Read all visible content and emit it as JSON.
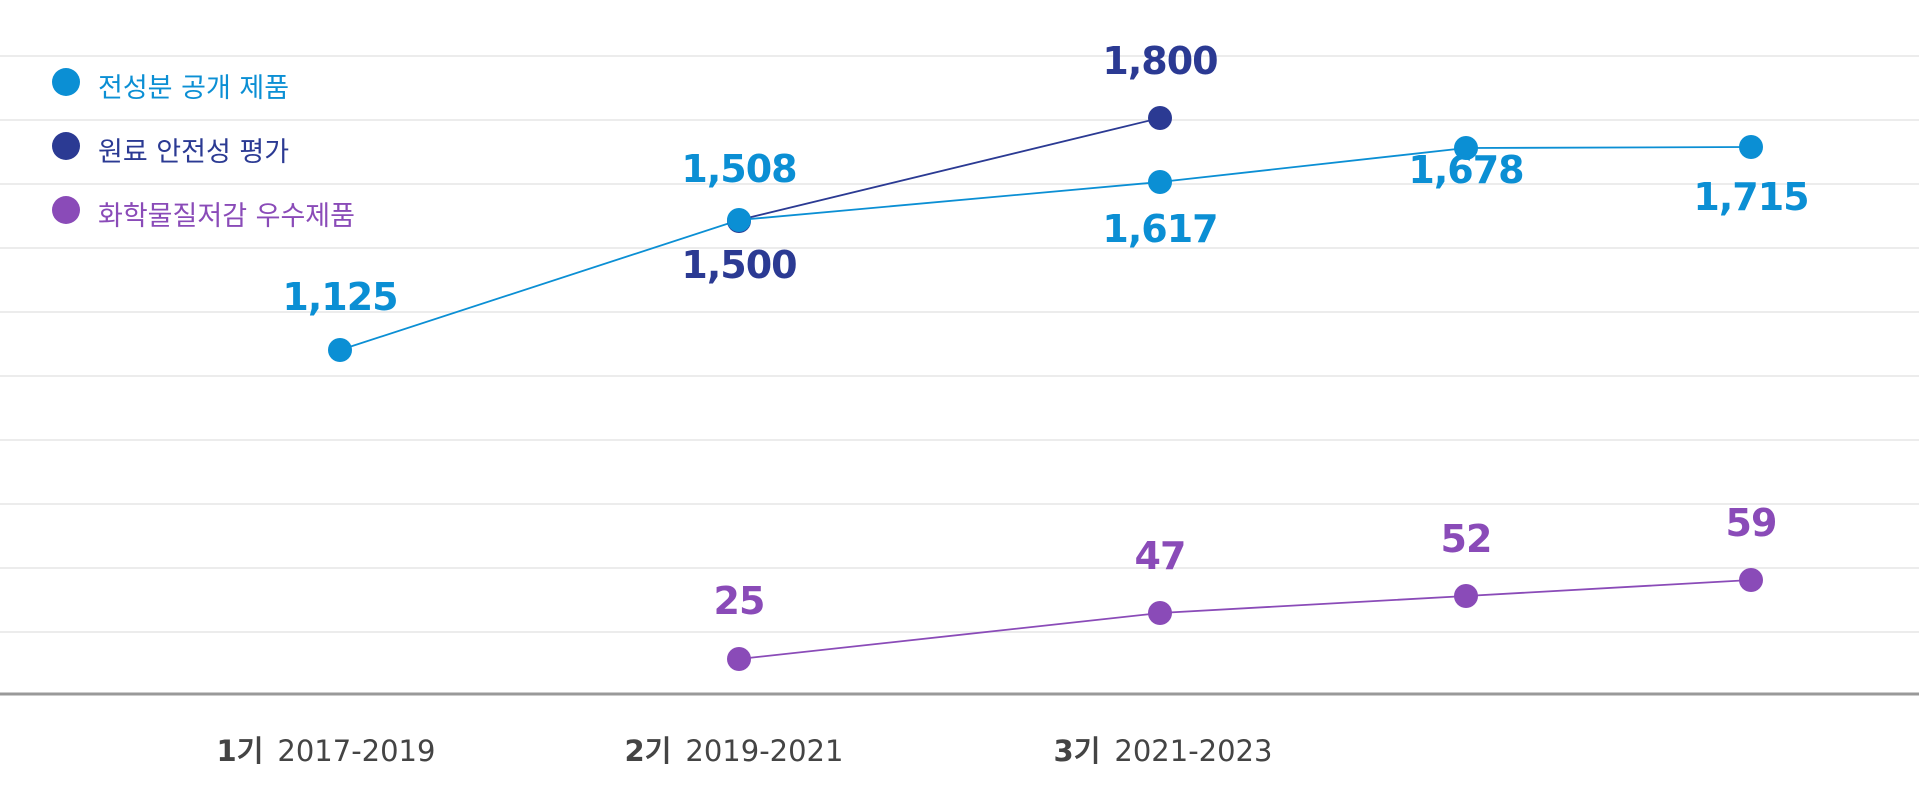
{
  "chart_data": {
    "type": "line",
    "title": "",
    "xlabel": "",
    "ylabel": "",
    "x_categories": [
      {
        "period": "1기",
        "years": "2017-2019"
      },
      {
        "period": "2기",
        "years": "2019-2021"
      },
      {
        "period": "3기",
        "years": "2021-2023"
      },
      {
        "period": "",
        "years": ""
      },
      {
        "period": "",
        "years": ""
      }
    ],
    "legend_position": "top-left",
    "grid": true,
    "series": [
      {
        "name": "전성분 공개 제품",
        "color": "#0b8fd4",
        "label_position": "above-below",
        "values": [
          1125,
          1508,
          1617,
          1678,
          1715
        ]
      },
      {
        "name": "원료 안전성 평가",
        "color": "#2b3a93",
        "label_position": "mixed",
        "values": [
          null,
          1500,
          1800,
          null,
          null
        ]
      },
      {
        "name": "화학물질저감 우수제품",
        "color": "#8a4bb8",
        "label_position": "above",
        "values": [
          null,
          25,
          47,
          52,
          59
        ]
      }
    ],
    "value_labels": [
      {
        "series": 0,
        "index": 0,
        "text": "1,125"
      },
      {
        "series": 0,
        "index": 1,
        "text": "1,508"
      },
      {
        "series": 0,
        "index": 2,
        "text": "1,617"
      },
      {
        "series": 0,
        "index": 3,
        "text": "1,678"
      },
      {
        "series": 0,
        "index": 4,
        "text": "1,715"
      },
      {
        "series": 1,
        "index": 1,
        "text": "1,500"
      },
      {
        "series": 1,
        "index": 2,
        "text": "1,800"
      },
      {
        "series": 2,
        "index": 1,
        "text": "25"
      },
      {
        "series": 2,
        "index": 2,
        "text": "47"
      },
      {
        "series": 2,
        "index": 3,
        "text": "52"
      },
      {
        "series": 2,
        "index": 4,
        "text": "59"
      }
    ]
  }
}
